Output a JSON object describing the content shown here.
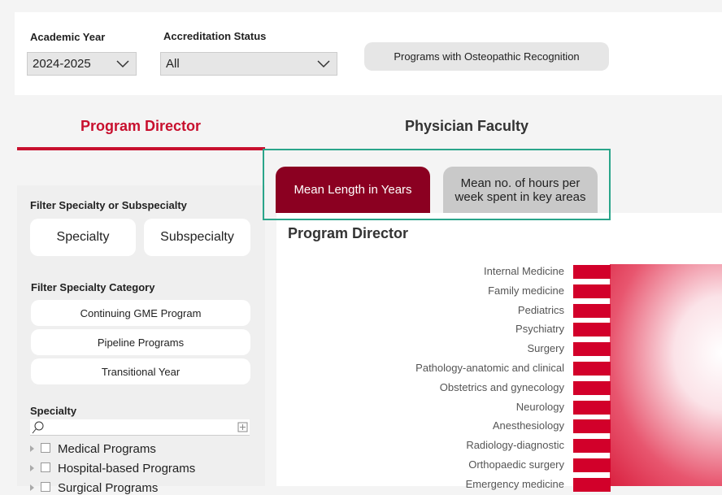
{
  "filters": {
    "academic_year": {
      "label": "Academic Year",
      "value": "2024-2025"
    },
    "accreditation_status": {
      "label": "Accreditation Status",
      "value": "All"
    },
    "osteopathic_button": "Programs with Osteopathic Recognition"
  },
  "tabs": [
    "Program Director",
    "Physician Faculty"
  ],
  "metric_buttons": [
    "Mean Length in Years",
    "Mean no. of hours per week spent in key areas"
  ],
  "sidebar": {
    "filter_specialty_title": "Filter Specialty or Subspecialty",
    "specialty_buttons": [
      "Specialty",
      "Subspecialty"
    ],
    "category_title": "Filter Specialty Category",
    "category_buttons": [
      "Continuing GME Program",
      "Pipeline Programs",
      "Transitional Year"
    ],
    "specialty_label": "Specialty",
    "tree_items": [
      "Medical Programs",
      "Hospital-based Programs",
      "Surgical Programs"
    ]
  },
  "chart": {
    "title": "Program Director",
    "categories": [
      "Internal Medicine",
      "Family medicine",
      "Pediatrics",
      "Psychiatry",
      "Surgery",
      "Pathology-anatomic and clinical",
      "Obstetrics and gynecology",
      "Neurology",
      "Anesthesiology",
      "Radiology-diagnostic",
      "Orthopaedic surgery",
      "Emergency medicine"
    ]
  }
}
